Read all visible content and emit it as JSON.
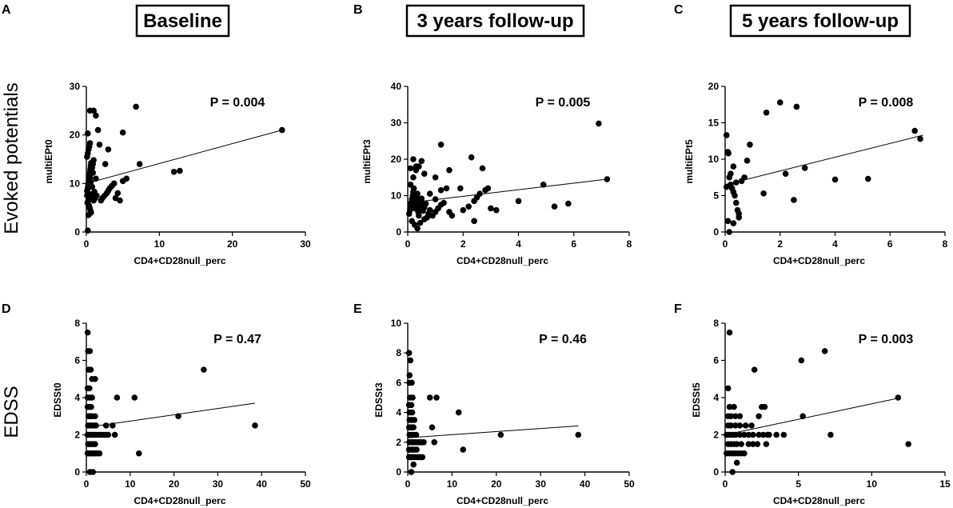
{
  "row_labels": [
    "Evoked potentials",
    "EDSS"
  ],
  "column_titles": [
    "Baseline",
    "3 years follow-up",
    "5 years follow-up"
  ],
  "chart_data": [
    {
      "panel": "A",
      "type": "scatter",
      "title": "Baseline",
      "xlabel": "CD4+CD28null_perc",
      "ylabel": "multiEPt0",
      "xlim": [
        0,
        30
      ],
      "ylim": [
        0,
        30
      ],
      "xticks": [
        0,
        10,
        20,
        30
      ],
      "yticks": [
        0,
        10,
        20,
        30
      ],
      "annotation": "P = 0.004",
      "regression": {
        "x": [
          0,
          26.8
        ],
        "y": [
          10.0,
          21.0
        ]
      },
      "x": [
        0.1,
        0.15,
        0.2,
        0.25,
        0.3,
        0.35,
        0.4,
        0.45,
        0.5,
        0.55,
        0.6,
        0.65,
        0.7,
        0.75,
        0.8,
        0.1,
        0.2,
        0.3,
        0.4,
        0.5,
        0.6,
        0.7,
        0.8,
        0.9,
        1.0,
        0.1,
        0.2,
        0.3,
        0.4,
        0.5,
        0.15,
        0.25,
        0.35,
        0.45,
        0.55,
        0.65,
        0.3,
        1.0,
        1.2,
        1.4,
        1.1,
        0.8,
        0.6,
        1.3,
        0.9,
        2.0,
        2.2,
        2.5,
        2.8,
        3.0,
        3.2,
        3.5,
        3.8,
        4.0,
        4.3,
        4.6,
        5.0,
        5.5,
        2.6,
        3.0,
        1.8,
        1.6,
        5.0,
        6.8,
        7.3,
        12.0,
        12.8,
        26.8,
        0.2,
        0.5
      ],
      "y": [
        7.5,
        8.2,
        9.0,
        9.6,
        10.2,
        10.8,
        11.3,
        11.8,
        12.4,
        13.0,
        13.6,
        14.2,
        6.8,
        7.2,
        7.8,
        8.5,
        9.1,
        9.8,
        10.6,
        11.2,
        12.0,
        12.6,
        13.3,
        14.0,
        14.8,
        15.5,
        16.2,
        17.0,
        17.6,
        18.3,
        6.0,
        6.4,
        5.5,
        5.0,
        4.5,
        4.0,
        3.5,
        6.5,
        7.0,
        7.5,
        8.3,
        9.3,
        10.3,
        11.0,
        12.2,
        6.5,
        7.0,
        7.5,
        8.0,
        8.5,
        9.0,
        9.5,
        10.0,
        7.0,
        8.0,
        6.5,
        10.5,
        11.0,
        14.0,
        17.0,
        18.0,
        21.0,
        20.5,
        25.8,
        14.0,
        12.4,
        12.6,
        21.0,
        20.3,
        25.0
      ],
      "extra_points": {
        "x": [
          1.0,
          1.3,
          0.2
        ],
        "y": [
          25.0,
          24.0,
          0.3
        ]
      }
    },
    {
      "panel": "B",
      "type": "scatter",
      "title": "3 years follow-up",
      "xlabel": "CD4+CD28null_perc",
      "ylabel": "multiEPt3",
      "xlim": [
        0,
        8
      ],
      "ylim": [
        0,
        40
      ],
      "xticks": [
        0,
        2,
        4,
        6,
        8
      ],
      "yticks": [
        0,
        10,
        20,
        30,
        40
      ],
      "annotation": "P = 0.005",
      "regression": {
        "x": [
          0,
          7.2
        ],
        "y": [
          8.0,
          14.5
        ]
      },
      "x": [
        0.05,
        0.08,
        0.1,
        0.12,
        0.15,
        0.18,
        0.2,
        0.22,
        0.25,
        0.28,
        0.3,
        0.32,
        0.35,
        0.38,
        0.4,
        0.42,
        0.45,
        0.48,
        0.5,
        0.55,
        0.6,
        0.65,
        0.7,
        0.75,
        0.8,
        0.1,
        0.2,
        0.3,
        0.4,
        0.5,
        0.15,
        0.25,
        0.35,
        0.45,
        0.6,
        0.9,
        1.0,
        1.1,
        1.2,
        1.3,
        1.5,
        1.6,
        1.0,
        0.8,
        1.4,
        2.0,
        2.2,
        2.4,
        2.5,
        2.6,
        2.8,
        2.9,
        3.0,
        3.2,
        1.9,
        1.5,
        1.2,
        0.6,
        0.3,
        0.2,
        4.0,
        4.9,
        5.3,
        5.8,
        6.9,
        7.2,
        0.1,
        0.4,
        2.7,
        2.3
      ],
      "y": [
        5.0,
        6.0,
        7.0,
        8.0,
        9.0,
        10.0,
        11.0,
        12.0,
        6.5,
        7.5,
        8.5,
        9.5,
        10.5,
        5.5,
        4.5,
        6.2,
        7.2,
        8.2,
        9.2,
        5.8,
        6.8,
        7.8,
        4.0,
        5.0,
        6.0,
        13.0,
        15.0,
        17.0,
        18.0,
        19.5,
        3.0,
        2.0,
        1.0,
        2.5,
        3.5,
        4.5,
        5.5,
        6.5,
        7.5,
        8.0,
        5.5,
        4.5,
        9.0,
        10.5,
        12.0,
        6.0,
        7.0,
        8.5,
        9.5,
        10.5,
        11.5,
        12.0,
        6.5,
        6.0,
        12.0,
        17.0,
        24.0,
        16.0,
        18.0,
        20.0,
        8.5,
        13.0,
        7.0,
        7.8,
        29.8,
        14.5,
        17.5,
        7.5,
        17.5,
        20.5
      ],
      "extra_points": {
        "x": [
          1.0,
          1.2,
          2.4
        ],
        "y": [
          15.0,
          11.5,
          3.0
        ]
      }
    },
    {
      "panel": "C",
      "type": "scatter",
      "title": "5 years follow-up",
      "xlabel": "CD4+CD28null_perc",
      "ylabel": "multiEPt5",
      "xlim": [
        0,
        8
      ],
      "ylim": [
        0,
        20
      ],
      "xticks": [
        0,
        2,
        4,
        6,
        8
      ],
      "yticks": [
        0,
        5,
        10,
        15,
        20
      ],
      "annotation": "P = 0.008",
      "regression": {
        "x": [
          0,
          7.2
        ],
        "y": [
          6.5,
          13.3
        ]
      },
      "x": [
        0.05,
        0.1,
        0.12,
        0.15,
        0.2,
        0.25,
        0.3,
        0.35,
        0.4,
        0.45,
        0.5,
        0.6,
        0.7,
        0.8,
        0.9,
        0.2,
        0.3,
        0.4,
        0.1,
        0.15,
        1.4,
        1.5,
        2.0,
        2.2,
        2.5,
        2.6,
        2.9,
        4.0,
        5.2,
        6.9,
        7.1,
        0.05,
        0.3,
        0.5
      ],
      "y": [
        13.3,
        11.0,
        10.8,
        7.5,
        6.5,
        6.0,
        5.5,
        5.0,
        4.0,
        3.0,
        2.5,
        7.0,
        7.5,
        9.8,
        12.0,
        8.0,
        9.0,
        6.8,
        1.5,
        0.0,
        5.3,
        16.4,
        17.8,
        8.0,
        4.4,
        17.2,
        8.8,
        7.2,
        7.3,
        13.9,
        12.8,
        6.2,
        1.2,
        2.0
      ]
    },
    {
      "panel": "D",
      "type": "scatter",
      "title": "Baseline",
      "xlabel": "CD4+CD28null_perc",
      "ylabel": "EDSSt0",
      "xlim": [
        0,
        50
      ],
      "ylim": [
        0,
        8
      ],
      "xticks": [
        0,
        10,
        20,
        30,
        40,
        50
      ],
      "yticks": [
        0,
        2,
        4,
        6,
        8
      ],
      "annotation": "P = 0.47",
      "regression": {
        "x": [
          0,
          38.5
        ],
        "y": [
          2.4,
          3.7
        ]
      },
      "x": [
        0.3,
        0.5,
        0.7,
        1.0,
        1.3,
        1.6,
        2.0,
        2.5,
        3.0,
        0.3,
        0.6,
        1.0,
        1.4,
        1.8,
        2.2,
        2.8,
        3.4,
        4.0,
        4.5,
        5.0,
        0.4,
        0.8,
        1.2,
        1.6,
        2.0,
        0.4,
        0.8,
        1.2,
        1.6,
        2.2,
        0.5,
        0.9,
        1.3,
        0.3,
        0.7,
        1.1,
        0.3,
        0.8,
        1.3,
        0.3,
        0.7,
        1.3,
        2.0,
        0.5,
        1.0,
        0.4,
        0.8,
        6.0,
        7.0,
        6.5,
        11.0,
        12.0,
        21.0,
        26.8,
        38.5,
        0.3,
        0.8,
        1.5,
        2.0,
        4.5
      ],
      "y": [
        1.0,
        1.0,
        1.0,
        1.0,
        1.0,
        1.0,
        1.0,
        1.0,
        1.0,
        2.0,
        2.0,
        2.0,
        2.0,
        2.0,
        2.0,
        2.0,
        2.0,
        2.0,
        2.0,
        2.0,
        1.5,
        1.5,
        1.5,
        1.5,
        1.5,
        2.5,
        2.5,
        2.5,
        2.5,
        2.5,
        3.0,
        3.0,
        3.0,
        3.5,
        3.5,
        3.5,
        4.0,
        4.0,
        4.0,
        4.5,
        4.5,
        5.0,
        5.0,
        5.5,
        5.5,
        6.5,
        6.5,
        2.5,
        4.0,
        2.0,
        4.0,
        1.0,
        3.0,
        5.5,
        2.5,
        7.5,
        0.0,
        0.0,
        3.0,
        2.5
      ]
    },
    {
      "panel": "E",
      "type": "scatter",
      "title": "3 years follow-up",
      "xlabel": "CD4+CD28null_perc",
      "ylabel": "EDSSt3",
      "xlim": [
        0,
        50
      ],
      "ylim": [
        0,
        10
      ],
      "xticks": [
        0,
        10,
        20,
        30,
        40,
        50
      ],
      "yticks": [
        0,
        2,
        4,
        6,
        8,
        10
      ],
      "annotation": "P = 0.46",
      "regression": {
        "x": [
          0,
          38.5
        ],
        "y": [
          2.3,
          3.1
        ]
      },
      "x": [
        0.3,
        0.6,
        1.0,
        1.4,
        1.8,
        2.3,
        2.8,
        3.3,
        0.4,
        0.8,
        1.2,
        1.6,
        2.1,
        2.6,
        3.1,
        3.6,
        0.3,
        0.7,
        1.1,
        1.5,
        2.0,
        0.4,
        0.9,
        1.4,
        1.9,
        0.3,
        0.8,
        1.3,
        0.4,
        0.9,
        1.5,
        0.4,
        1.0,
        0.3,
        0.8,
        0.5,
        1.1,
        0.4,
        0.9,
        0.6,
        0.3,
        0.8,
        5.0,
        5.5,
        6.0,
        6.5,
        11.5,
        12.5,
        21.0,
        38.5,
        0.4,
        0.8,
        1.3,
        1.0
      ],
      "y": [
        1.0,
        1.0,
        1.0,
        1.0,
        1.0,
        1.0,
        1.0,
        1.0,
        2.0,
        2.0,
        2.0,
        2.0,
        2.0,
        2.0,
        2.0,
        2.0,
        1.5,
        1.5,
        1.5,
        1.5,
        1.5,
        2.5,
        2.5,
        2.5,
        2.5,
        3.0,
        3.0,
        3.0,
        3.5,
        3.5,
        3.5,
        4.0,
        4.0,
        4.5,
        4.5,
        5.0,
        5.0,
        6.0,
        6.0,
        7.5,
        8.0,
        0.0,
        5.0,
        3.0,
        2.0,
        5.0,
        4.0,
        1.5,
        2.5,
        2.5,
        6.5,
        0.0,
        0.5,
        3.0
      ]
    },
    {
      "panel": "F",
      "type": "scatter",
      "title": "5 years follow-up",
      "xlabel": "CD4+CD28null_perc",
      "ylabel": "EDSSt5",
      "xlim": [
        0,
        15
      ],
      "ylim": [
        0,
        8
      ],
      "xticks": [
        0,
        5,
        10,
        15
      ],
      "yticks": [
        0,
        2,
        4,
        6,
        8
      ],
      "annotation": "P = 0.003",
      "regression": {
        "x": [
          0,
          12.0
        ],
        "y": [
          2.0,
          4.0
        ]
      },
      "x": [
        0.1,
        0.3,
        0.5,
        0.7,
        0.9,
        1.1,
        1.3,
        1.6,
        1.9,
        2.2,
        0.1,
        0.3,
        0.5,
        0.7,
        1.0,
        1.3,
        1.6,
        1.9,
        2.3,
        2.6,
        2.9,
        0.2,
        0.4,
        0.6,
        0.8,
        1.1,
        0.2,
        0.4,
        0.7,
        1.0,
        1.4,
        1.8,
        0.2,
        0.4,
        0.7,
        1.0,
        0.3,
        0.6,
        0.2,
        0.3,
        2.0,
        2.5,
        3.0,
        2.8,
        3.5,
        4.0,
        5.2,
        5.3,
        6.8,
        7.2,
        11.8,
        12.5,
        2.3,
        2.7,
        0.5,
        0.8
      ],
      "y": [
        1.0,
        1.0,
        1.0,
        1.0,
        1.0,
        1.0,
        1.0,
        1.5,
        1.5,
        1.5,
        2.0,
        2.0,
        2.0,
        2.0,
        2.0,
        2.0,
        2.0,
        2.0,
        2.0,
        2.0,
        2.0,
        1.5,
        1.5,
        1.5,
        1.5,
        1.5,
        2.5,
        2.5,
        2.5,
        2.5,
        2.5,
        2.5,
        3.0,
        3.0,
        3.0,
        3.0,
        3.5,
        3.5,
        4.5,
        7.5,
        5.5,
        3.5,
        2.0,
        1.5,
        2.0,
        2.0,
        6.0,
        3.0,
        6.5,
        2.0,
        4.0,
        1.5,
        3.0,
        3.5,
        0.0,
        0.5
      ]
    }
  ]
}
